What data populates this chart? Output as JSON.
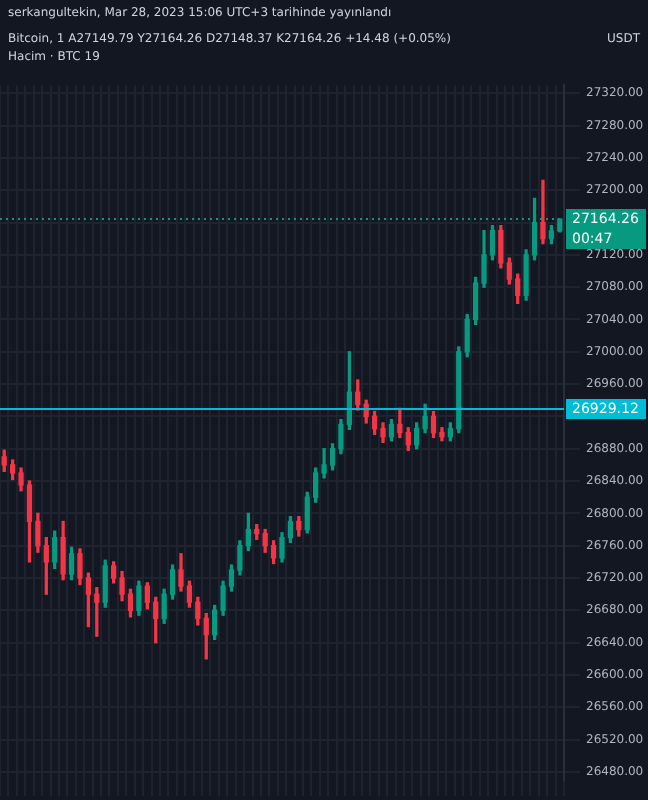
{
  "chart_data": {
    "type": "candlestick",
    "title": "Bitcoin, 1  A27149.79 Y27164.26 D27148.37 K27164.26 +14.48 (+0.05%)",
    "ylabel": "USDT",
    "annotations": [
      "serkangultekin, Mar 28, 2023 15:06 UTC+3 tarihinde yayınlandı",
      "Hacim · BTC 19",
      "00:47"
    ],
    "categories": [
      null,
      null,
      null,
      null,
      null,
      null,
      null,
      null,
      null,
      null,
      null,
      null,
      null,
      null,
      null,
      null,
      null,
      null,
      null,
      null,
      null,
      null,
      null,
      null,
      null,
      null,
      null,
      null,
      null,
      null,
      null,
      null,
      null,
      null,
      null,
      null,
      null,
      null,
      null,
      null,
      null,
      null,
      null,
      null,
      null,
      null,
      null,
      null,
      null,
      null,
      null,
      null,
      null,
      null,
      null,
      null,
      null,
      null,
      null,
      null,
      null,
      null,
      null,
      null,
      null,
      null,
      null
    ],
    "ohlc": [
      [
        26870,
        26878,
        26852,
        26860
      ],
      [
        26860,
        26866,
        26842,
        26850
      ],
      [
        26850,
        26856,
        26828,
        26835
      ],
      [
        26835,
        26840,
        26740,
        26790
      ],
      [
        26790,
        26800,
        26752,
        26760
      ],
      [
        26760,
        26770,
        26700,
        26740
      ],
      [
        26740,
        26778,
        26732,
        26770
      ],
      [
        26770,
        26790,
        26718,
        26725
      ],
      [
        26725,
        26758,
        26718,
        26750
      ],
      [
        26750,
        26756,
        26712,
        26720
      ],
      [
        26720,
        26726,
        26660,
        26700
      ],
      [
        26700,
        26708,
        26648,
        26690
      ],
      [
        26690,
        26742,
        26684,
        26735
      ],
      [
        26735,
        26740,
        26714,
        26720
      ],
      [
        26720,
        26728,
        26692,
        26700
      ],
      [
        26700,
        26706,
        26672,
        26680
      ],
      [
        26680,
        26716,
        26674,
        26710
      ],
      [
        26710,
        26714,
        26682,
        26690
      ],
      [
        26690,
        26696,
        26640,
        26670
      ],
      [
        26670,
        26706,
        26664,
        26700
      ],
      [
        26700,
        26736,
        26694,
        26730
      ],
      [
        26730,
        26750,
        26704,
        26710
      ],
      [
        26710,
        26716,
        26684,
        26690
      ],
      [
        26690,
        26696,
        26662,
        26670
      ],
      [
        26670,
        26676,
        26620,
        26650
      ],
      [
        26650,
        26686,
        26644,
        26680
      ],
      [
        26680,
        26716,
        26674,
        26710
      ],
      [
        26710,
        26736,
        26704,
        26730
      ],
      [
        26730,
        26766,
        26724,
        26760
      ],
      [
        26760,
        26800,
        26754,
        26780
      ],
      [
        26780,
        26786,
        26768,
        26775
      ],
      [
        26775,
        26780,
        26752,
        26760
      ],
      [
        26760,
        26766,
        26738,
        26745
      ],
      [
        26745,
        26776,
        26740,
        26770
      ],
      [
        26770,
        26796,
        26764,
        26790
      ],
      [
        26790,
        26796,
        26772,
        26780
      ],
      [
        26780,
        26826,
        26776,
        26820
      ],
      [
        26820,
        26856,
        26814,
        26850
      ],
      [
        26850,
        26880,
        26844,
        26860
      ],
      [
        26860,
        26886,
        26854,
        26880
      ],
      [
        26880,
        26916,
        26874,
        26910
      ],
      [
        26910,
        27000,
        26904,
        26950
      ],
      [
        26950,
        26965,
        26928,
        26935
      ],
      [
        26935,
        26940,
        26912,
        26920
      ],
      [
        26920,
        26926,
        26898,
        26905
      ],
      [
        26905,
        26912,
        26888,
        26895
      ],
      [
        26895,
        26916,
        26890,
        26910
      ],
      [
        26910,
        26930,
        26894,
        26900
      ],
      [
        26900,
        26906,
        26878,
        26885
      ],
      [
        26885,
        26912,
        26880,
        26905
      ],
      [
        26905,
        26935,
        26900,
        26920
      ],
      [
        26920,
        26926,
        26894,
        26900
      ],
      [
        26900,
        26906,
        26890,
        26895
      ],
      [
        26895,
        26912,
        26890,
        26905
      ],
      [
        26905,
        27006,
        26900,
        27000
      ],
      [
        27000,
        27046,
        26994,
        27040
      ],
      [
        27040,
        27092,
        27034,
        27085
      ],
      [
        27085,
        27150,
        27080,
        27120
      ],
      [
        27120,
        27156,
        27114,
        27150
      ],
      [
        27150,
        27156,
        27104,
        27110
      ],
      [
        27110,
        27116,
        27084,
        27090
      ],
      [
        27090,
        27096,
        27060,
        27070
      ],
      [
        27070,
        27126,
        27064,
        27120
      ],
      [
        27120,
        27190,
        27114,
        27160
      ],
      [
        27160,
        27212,
        27134,
        27140
      ],
      [
        27140,
        27156,
        27134,
        27149.79
      ],
      [
        27149.79,
        27164.26,
        27148.37,
        27164.26
      ]
    ],
    "colors": [
      "#f23645",
      "#f23645",
      "#f23645",
      "#f23645",
      "#f23645",
      "#f23645",
      "#089981",
      "#f23645",
      "#089981",
      "#f23645",
      "#f23645",
      "#f23645",
      "#089981",
      "#f23645",
      "#f23645",
      "#f23645",
      "#089981",
      "#f23645",
      "#f23645",
      "#089981",
      "#089981",
      "#f23645",
      "#f23645",
      "#f23645",
      "#f23645",
      "#089981",
      "#089981",
      "#089981",
      "#089981",
      "#089981",
      "#f23645",
      "#f23645",
      "#f23645",
      "#089981",
      "#089981",
      "#f23645",
      "#089981",
      "#089981",
      "#089981",
      "#089981",
      "#089981",
      "#089981",
      "#f23645",
      "#f23645",
      "#f23645",
      "#f23645",
      "#089981",
      "#f23645",
      "#f23645",
      "#089981",
      "#089981",
      "#f23645",
      "#f23645",
      "#089981",
      "#089981",
      "#089981",
      "#089981",
      "#089981",
      "#089981",
      "#f23645",
      "#f23645",
      "#f23645",
      "#089981",
      "#089981",
      "#f23645",
      "#089981",
      "#089981"
    ],
    "ylim": [
      26470,
      27330
    ],
    "yticks": [
      {
        "value": 26480,
        "label": "26480.00"
      },
      {
        "value": 26520,
        "label": "26520.00"
      },
      {
        "value": 26560,
        "label": "26560.00"
      },
      {
        "value": 26600,
        "label": "26600.00"
      },
      {
        "value": 26640,
        "label": "26640.00"
      },
      {
        "value": 26680,
        "label": "26680.00"
      },
      {
        "value": 26720,
        "label": "26720.00"
      },
      {
        "value": 26760,
        "label": "26760.00"
      },
      {
        "value": 26800,
        "label": "26800.00"
      },
      {
        "value": 26840,
        "label": "26840.00"
      },
      {
        "value": 26880,
        "label": "26880.00"
      },
      {
        "value": 26920,
        "label": null
      },
      {
        "value": 26960,
        "label": "26960.00"
      },
      {
        "value": 27000,
        "label": "27000.00"
      },
      {
        "value": 27040,
        "label": "27040.00"
      },
      {
        "value": 27080,
        "label": "27080.00"
      },
      {
        "value": 27120,
        "label": "27120.00"
      },
      {
        "value": 27160,
        "label": null
      },
      {
        "value": 27200,
        "label": "27200.00"
      },
      {
        "value": 27240,
        "label": "27240.00"
      },
      {
        "value": 27280,
        "label": "27280.00"
      },
      {
        "value": 27320,
        "label": "27320.00"
      }
    ],
    "ref_lines": [
      {
        "axis": "y",
        "value": 26929.12,
        "label": "26929.12",
        "color": "#00bcd4",
        "line_style": "solid"
      },
      {
        "axis": "y",
        "value": 27164.26,
        "label": "27164.26",
        "color": "#089981",
        "line_style": "dotted"
      }
    ],
    "grid": true,
    "legend": false
  }
}
